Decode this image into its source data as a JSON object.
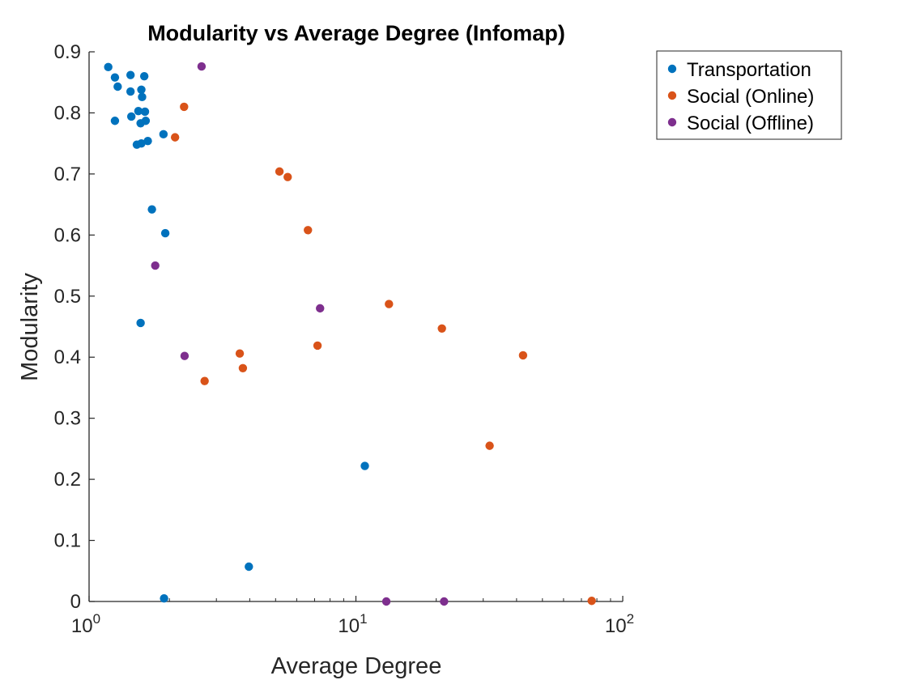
{
  "chart_data": {
    "type": "scatter",
    "title": "Modularity vs Average Degree (Infomap)",
    "xlabel": "Average Degree",
    "ylabel": "Modularity",
    "xscale": "log",
    "xlim": [
      1,
      100
    ],
    "ylim": [
      0,
      0.9
    ],
    "xticks": [
      {
        "value": 1,
        "base": "10",
        "exp": "0"
      },
      {
        "value": 10,
        "base": "10",
        "exp": "1"
      },
      {
        "value": 100,
        "base": "10",
        "exp": "2"
      }
    ],
    "yticks": [
      "0",
      "0.1",
      "0.2",
      "0.3",
      "0.4",
      "0.5",
      "0.6",
      "0.7",
      "0.8",
      "0.9"
    ],
    "grid": false,
    "legend_position": "top-right, outside plot area",
    "series": [
      {
        "name": "Transportation",
        "color": "#0072BD",
        "points": [
          [
            1.18,
            0.875
          ],
          [
            1.25,
            0.858
          ],
          [
            1.28,
            0.843
          ],
          [
            1.43,
            0.862
          ],
          [
            1.61,
            0.86
          ],
          [
            1.43,
            0.835
          ],
          [
            1.57,
            0.838
          ],
          [
            1.58,
            0.826
          ],
          [
            1.53,
            0.803
          ],
          [
            1.62,
            0.802
          ],
          [
            1.25,
            0.787
          ],
          [
            1.44,
            0.794
          ],
          [
            1.56,
            0.783
          ],
          [
            1.63,
            0.787
          ],
          [
            1.51,
            0.748
          ],
          [
            1.57,
            0.75
          ],
          [
            1.66,
            0.754
          ],
          [
            1.9,
            0.765
          ],
          [
            1.72,
            0.642
          ],
          [
            1.93,
            0.603
          ],
          [
            1.56,
            0.456
          ],
          [
            10.8,
            0.222
          ],
          [
            3.97,
            0.057
          ],
          [
            1.91,
            0.005
          ]
        ]
      },
      {
        "name": "Social (Online)",
        "color": "#D95319",
        "points": [
          [
            2.27,
            0.81
          ],
          [
            2.1,
            0.76
          ],
          [
            5.17,
            0.704
          ],
          [
            5.55,
            0.695
          ],
          [
            6.61,
            0.608
          ],
          [
            13.3,
            0.487
          ],
          [
            21.0,
            0.447
          ],
          [
            42.3,
            0.403
          ],
          [
            7.18,
            0.419
          ],
          [
            3.67,
            0.406
          ],
          [
            3.77,
            0.382
          ],
          [
            2.71,
            0.361
          ],
          [
            31.7,
            0.255
          ],
          [
            76.5,
            0.001
          ]
        ]
      },
      {
        "name": "Social (Offline)",
        "color": "#7E2F8E",
        "points": [
          [
            2.64,
            0.876
          ],
          [
            1.77,
            0.55
          ],
          [
            7.34,
            0.48
          ],
          [
            2.28,
            0.402
          ],
          [
            13.0,
            0.0
          ],
          [
            21.4,
            0.0
          ]
        ]
      }
    ]
  }
}
